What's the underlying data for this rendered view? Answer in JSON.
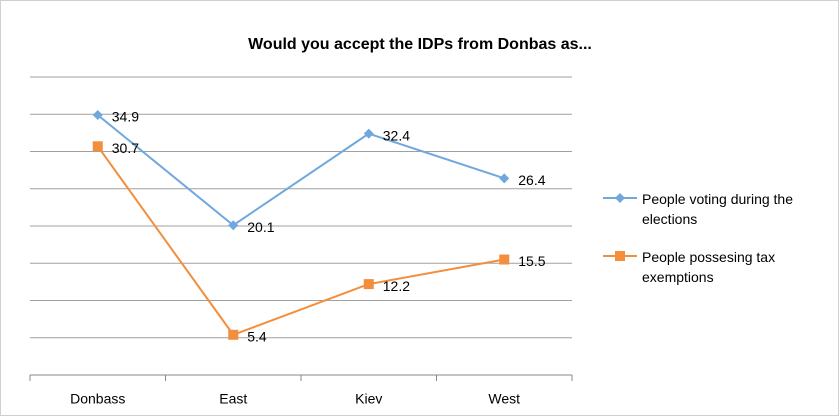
{
  "chart_data": {
    "type": "line",
    "title": "Would you accept the IDPs from Donbas as...",
    "categories": [
      "Donbass",
      "East",
      "Kiev",
      "West"
    ],
    "series": [
      {
        "name": "People voting during the elections",
        "color": "#6fa8dc",
        "marker": "diamond",
        "values": [
          34.9,
          20.1,
          32.4,
          26.4
        ]
      },
      {
        "name": "People possesing tax exemptions",
        "color": "#f28e3c",
        "marker": "square",
        "values": [
          30.7,
          5.4,
          12.2,
          15.5
        ]
      }
    ],
    "ylim": [
      0,
      40
    ],
    "yticks": [
      0,
      5,
      10,
      15,
      20,
      25,
      30,
      35,
      40
    ],
    "grid": true,
    "legend": "right"
  }
}
